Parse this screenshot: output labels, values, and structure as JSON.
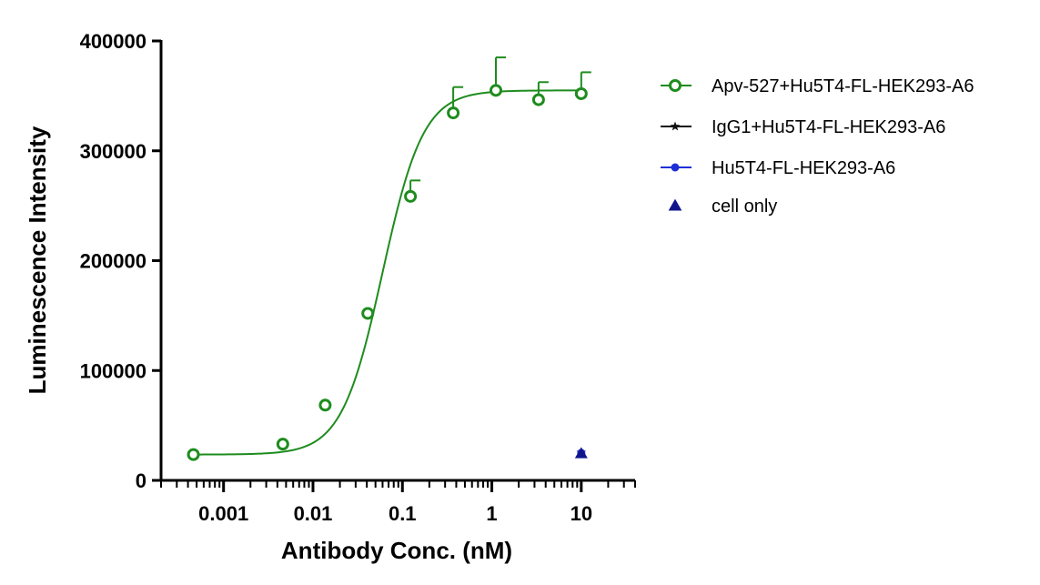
{
  "chart_data": {
    "type": "scatter",
    "xlabel": "Antibody Conc. (nM)",
    "ylabel": "Luminescence Intensity",
    "xscale": "log",
    "xlim": [
      0.0002,
      40
    ],
    "ylim": [
      0,
      400000
    ],
    "x_ticks": [
      {
        "value": 0.001,
        "label": "0.001"
      },
      {
        "value": 0.01,
        "label": "0.01"
      },
      {
        "value": 0.1,
        "label": "0.1"
      },
      {
        "value": 1,
        "label": "1"
      },
      {
        "value": 10,
        "label": "10"
      }
    ],
    "y_ticks": [
      {
        "value": 0,
        "label": "0"
      },
      {
        "value": 100000,
        "label": "100000"
      },
      {
        "value": 200000,
        "label": "200000"
      },
      {
        "value": 300000,
        "label": "300000"
      },
      {
        "value": 400000,
        "label": "400000"
      }
    ],
    "legend_position": "right",
    "series": [
      {
        "name": "Apv-527+Hu5T4-FL-HEK293-A6",
        "color": "#1e8c1e",
        "marker": "open-circle",
        "fit": {
          "model": "4PL",
          "bottom": 23500,
          "top": 355000,
          "ec50": 0.06,
          "hill": 1.9
        },
        "points": [
          {
            "x": 0.00046,
            "y": 23500,
            "err": 0
          },
          {
            "x": 0.0046,
            "y": 33000,
            "err": 0
          },
          {
            "x": 0.0137,
            "y": 68500,
            "err": 0
          },
          {
            "x": 0.041,
            "y": 152000,
            "err": 0
          },
          {
            "x": 0.123,
            "y": 258500,
            "err": 14500
          },
          {
            "x": 0.37,
            "y": 334500,
            "err": 23500
          },
          {
            "x": 1.11,
            "y": 355000,
            "err": 30000
          },
          {
            "x": 3.33,
            "y": 346500,
            "err": 16000
          },
          {
            "x": 10,
            "y": 352000,
            "err": 19500
          }
        ]
      },
      {
        "name": "IgG1+Hu5T4-FL-HEK293-A6",
        "color": "#111111",
        "marker": "star",
        "points": [
          {
            "x": 10,
            "y": 25500
          }
        ]
      },
      {
        "name": "Hu5T4-FL-HEK293-A6",
        "color": "#1f2fd6",
        "marker": "filled-circle",
        "points": [
          {
            "x": 10,
            "y": 25000
          }
        ]
      },
      {
        "name": "cell only",
        "color": "#10158c",
        "marker": "triangle",
        "points": [
          {
            "x": 10,
            "y": 24500
          }
        ]
      }
    ]
  }
}
